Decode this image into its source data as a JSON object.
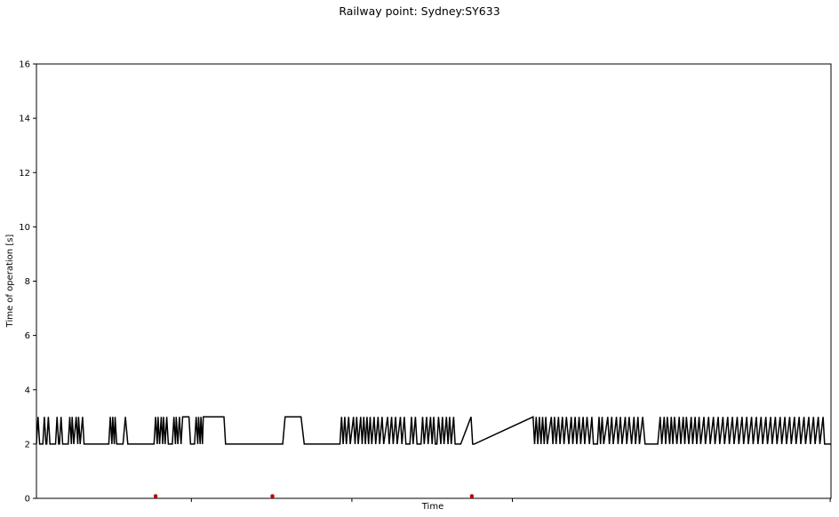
{
  "chart_data": {
    "type": "line",
    "title": "Railway point: Sydney:SY633",
    "xlabel": "Time",
    "ylabel": "Time of operation [s]",
    "ylim": [
      0,
      16
    ],
    "yticks": [
      0,
      2,
      4,
      6,
      8,
      10,
      12,
      14,
      16
    ],
    "xlim": [
      0,
      1
    ],
    "xtick_positions": [
      0.195,
      0.397,
      0.599,
      0.999
    ],
    "grid": false,
    "series": [
      {
        "color": "#000000",
        "segments": [
          [
            0.0,
            2,
            "2,3,2,3,2,3,2,2,3,2,2,3,2,3,2,2,3,2,3,2,3,2,3,2,3,3,2,3,2,3,2,3,2,3,2,3,2,3,2,3,2,3,2,3,2,3,2,3,2,3,2,3,2,3,2,3,2,3,2,3,2,3,2,3,2,3,2,3,2,3,2,3,2,3,2,3,2,3,2,3,2,3,2,3,2,3,2,3,2,3,2,3,2,3,2,3,2,3,2,3,2,3,2,3,2,3,2,3,2,3,2,3,2,3,2"
          ],
          [
            0.0,
            2,
            "2"
          ]
        ],
        "points": [
          [
            0.0,
            2
          ],
          [
            0.002,
            3
          ],
          [
            0.004,
            2
          ],
          [
            0.008,
            2
          ],
          [
            0.01,
            3
          ],
          [
            0.012,
            2
          ],
          [
            0.013,
            2
          ],
          [
            0.015,
            3
          ],
          [
            0.017,
            2
          ],
          [
            0.024,
            2
          ],
          [
            0.026,
            3
          ],
          [
            0.028,
            2
          ],
          [
            0.029,
            2
          ],
          [
            0.031,
            3
          ],
          [
            0.033,
            2
          ],
          [
            0.04,
            2
          ],
          [
            0.042,
            3
          ],
          [
            0.044,
            2
          ],
          [
            0.045,
            3
          ],
          [
            0.047,
            2
          ],
          [
            0.05,
            3
          ],
          [
            0.052,
            2
          ],
          [
            0.053,
            3
          ],
          [
            0.055,
            2
          ],
          [
            0.058,
            3
          ],
          [
            0.06,
            2
          ],
          [
            0.091,
            2
          ],
          [
            0.093,
            3
          ],
          [
            0.095,
            2
          ],
          [
            0.096,
            3
          ],
          [
            0.098,
            2
          ],
          [
            0.099,
            3
          ],
          [
            0.101,
            2
          ],
          [
            0.109,
            2
          ],
          [
            0.112,
            3
          ],
          [
            0.115,
            2
          ],
          [
            0.148,
            2
          ],
          [
            0.15,
            3
          ],
          [
            0.152,
            2
          ],
          [
            0.153,
            3
          ],
          [
            0.155,
            2
          ],
          [
            0.157,
            3
          ],
          [
            0.159,
            2
          ],
          [
            0.16,
            3
          ],
          [
            0.162,
            2
          ],
          [
            0.164,
            3
          ],
          [
            0.166,
            2
          ],
          [
            0.171,
            2
          ],
          [
            0.173,
            3
          ],
          [
            0.175,
            2
          ],
          [
            0.176,
            3
          ],
          [
            0.178,
            2
          ],
          [
            0.18,
            3
          ],
          [
            0.182,
            2
          ],
          [
            0.184,
            3
          ],
          [
            0.192,
            3
          ],
          [
            0.194,
            2
          ],
          [
            0.199,
            2
          ],
          [
            0.201,
            3
          ],
          [
            0.203,
            2
          ],
          [
            0.204,
            3
          ],
          [
            0.206,
            2
          ],
          [
            0.207,
            3
          ],
          [
            0.209,
            2
          ],
          [
            0.21,
            3
          ],
          [
            0.236,
            3
          ],
          [
            0.238,
            2
          ],
          [
            0.31,
            2
          ],
          [
            0.313,
            3
          ],
          [
            0.333,
            3
          ],
          [
            0.337,
            2
          ],
          [
            0.382,
            2
          ],
          [
            0.384,
            3
          ],
          [
            0.386,
            2
          ],
          [
            0.388,
            3
          ],
          [
            0.39,
            2
          ],
          [
            0.393,
            3
          ],
          [
            0.395,
            2
          ],
          [
            0.399,
            3
          ],
          [
            0.401,
            2
          ],
          [
            0.403,
            3
          ],
          [
            0.405,
            2
          ],
          [
            0.408,
            3
          ],
          [
            0.41,
            2
          ],
          [
            0.412,
            3
          ],
          [
            0.414,
            2
          ],
          [
            0.416,
            3
          ],
          [
            0.418,
            2
          ],
          [
            0.42,
            3
          ],
          [
            0.422,
            2
          ],
          [
            0.425,
            3
          ],
          [
            0.427,
            2
          ],
          [
            0.43,
            3
          ],
          [
            0.432,
            2
          ],
          [
            0.435,
            3
          ],
          [
            0.437,
            2
          ],
          [
            0.442,
            3
          ],
          [
            0.444,
            2
          ],
          [
            0.447,
            3
          ],
          [
            0.449,
            2
          ],
          [
            0.452,
            3
          ],
          [
            0.454,
            2
          ],
          [
            0.458,
            3
          ],
          [
            0.46,
            2
          ],
          [
            0.463,
            3
          ],
          [
            0.465,
            2
          ],
          [
            0.47,
            2
          ],
          [
            0.472,
            3
          ],
          [
            0.474,
            2
          ],
          [
            0.477,
            3
          ],
          [
            0.479,
            2
          ],
          [
            0.484,
            2
          ],
          [
            0.486,
            3
          ],
          [
            0.488,
            2
          ],
          [
            0.491,
            3
          ],
          [
            0.493,
            2
          ],
          [
            0.496,
            3
          ],
          [
            0.498,
            2
          ],
          [
            0.5,
            3
          ],
          [
            0.502,
            2
          ],
          [
            0.504,
            2
          ],
          [
            0.506,
            3
          ],
          [
            0.509,
            2
          ],
          [
            0.511,
            3
          ],
          [
            0.513,
            2
          ],
          [
            0.516,
            3
          ],
          [
            0.518,
            2
          ],
          [
            0.52,
            3
          ],
          [
            0.522,
            2
          ],
          [
            0.525,
            3
          ],
          [
            0.527,
            2
          ],
          [
            0.534,
            2
          ],
          [
            0.547,
            3
          ],
          [
            0.549,
            2
          ],
          [
            0.551,
            2
          ],
          [
            0.625,
            3
          ],
          [
            0.627,
            2
          ],
          [
            0.629,
            3
          ],
          [
            0.631,
            2
          ],
          [
            0.633,
            3
          ],
          [
            0.635,
            2
          ],
          [
            0.637,
            3
          ],
          [
            0.639,
            2
          ],
          [
            0.641,
            3
          ],
          [
            0.643,
            2
          ],
          [
            0.648,
            3
          ],
          [
            0.65,
            2
          ],
          [
            0.652,
            3
          ],
          [
            0.654,
            2
          ],
          [
            0.657,
            3
          ],
          [
            0.659,
            2
          ],
          [
            0.662,
            3
          ],
          [
            0.664,
            2
          ],
          [
            0.667,
            3
          ],
          [
            0.67,
            2
          ],
          [
            0.673,
            3
          ],
          [
            0.675,
            2
          ],
          [
            0.678,
            3
          ],
          [
            0.68,
            2
          ],
          [
            0.683,
            3
          ],
          [
            0.685,
            2
          ],
          [
            0.688,
            3
          ],
          [
            0.69,
            2
          ],
          [
            0.693,
            3
          ],
          [
            0.696,
            2
          ],
          [
            0.699,
            3
          ],
          [
            0.701,
            2
          ],
          [
            0.706,
            2
          ],
          [
            0.708,
            3
          ],
          [
            0.71,
            2
          ],
          [
            0.712,
            3
          ],
          [
            0.714,
            2
          ],
          [
            0.719,
            3
          ],
          [
            0.721,
            2
          ],
          [
            0.724,
            3
          ],
          [
            0.726,
            2
          ],
          [
            0.73,
            3
          ],
          [
            0.732,
            2
          ],
          [
            0.735,
            3
          ],
          [
            0.737,
            2
          ],
          [
            0.741,
            3
          ],
          [
            0.743,
            2
          ],
          [
            0.746,
            3
          ],
          [
            0.749,
            2
          ],
          [
            0.752,
            3
          ],
          [
            0.754,
            2
          ],
          [
            0.757,
            3
          ],
          [
            0.759,
            2
          ],
          [
            0.763,
            3
          ],
          [
            0.766,
            2
          ],
          [
            0.772,
            2
          ],
          [
            0.782,
            2
          ],
          [
            0.785,
            3
          ],
          [
            0.787,
            2
          ],
          [
            0.79,
            3
          ],
          [
            0.792,
            2
          ],
          [
            0.794,
            3
          ],
          [
            0.797,
            2
          ],
          [
            0.799,
            3
          ],
          [
            0.801,
            2
          ],
          [
            0.803,
            3
          ],
          [
            0.806,
            2
          ],
          [
            0.809,
            3
          ],
          [
            0.811,
            2
          ],
          [
            0.814,
            3
          ],
          [
            0.816,
            2
          ],
          [
            0.818,
            3
          ],
          [
            0.821,
            2
          ],
          [
            0.824,
            3
          ],
          [
            0.826,
            2
          ],
          [
            0.829,
            3
          ],
          [
            0.831,
            2
          ],
          [
            0.834,
            3
          ],
          [
            0.836,
            2
          ],
          [
            0.84,
            3
          ],
          [
            0.842,
            2
          ],
          [
            0.846,
            3
          ],
          [
            0.848,
            2
          ],
          [
            0.852,
            3
          ],
          [
            0.854,
            2
          ],
          [
            0.858,
            3
          ],
          [
            0.86,
            2
          ],
          [
            0.864,
            3
          ],
          [
            0.866,
            2
          ],
          [
            0.87,
            3
          ],
          [
            0.872,
            2
          ],
          [
            0.876,
            3
          ],
          [
            0.878,
            2
          ],
          [
            0.882,
            3
          ],
          [
            0.884,
            2
          ],
          [
            0.888,
            3
          ],
          [
            0.89,
            2
          ],
          [
            0.894,
            3
          ],
          [
            0.896,
            2
          ],
          [
            0.9,
            3
          ],
          [
            0.902,
            2
          ],
          [
            0.906,
            3
          ],
          [
            0.908,
            2
          ],
          [
            0.912,
            3
          ],
          [
            0.914,
            2
          ],
          [
            0.918,
            3
          ],
          [
            0.92,
            2
          ],
          [
            0.924,
            3
          ],
          [
            0.926,
            2
          ],
          [
            0.93,
            3
          ],
          [
            0.932,
            2
          ],
          [
            0.936,
            3
          ],
          [
            0.938,
            2
          ],
          [
            0.942,
            3
          ],
          [
            0.944,
            2
          ],
          [
            0.948,
            3
          ],
          [
            0.95,
            2
          ],
          [
            0.954,
            3
          ],
          [
            0.956,
            2
          ],
          [
            0.96,
            3
          ],
          [
            0.962,
            2
          ],
          [
            0.966,
            3
          ],
          [
            0.968,
            2
          ],
          [
            0.972,
            3
          ],
          [
            0.974,
            2
          ],
          [
            0.978,
            3
          ],
          [
            0.98,
            2
          ],
          [
            0.984,
            3
          ],
          [
            0.986,
            2
          ],
          [
            0.99,
            3
          ],
          [
            0.992,
            2
          ],
          [
            1.0,
            2
          ]
        ]
      }
    ],
    "markers": {
      "color": "#cc0000",
      "points": [
        [
          0.15,
          0.08
        ],
        [
          0.297,
          0.08
        ],
        [
          0.548,
          0.08
        ]
      ]
    }
  }
}
